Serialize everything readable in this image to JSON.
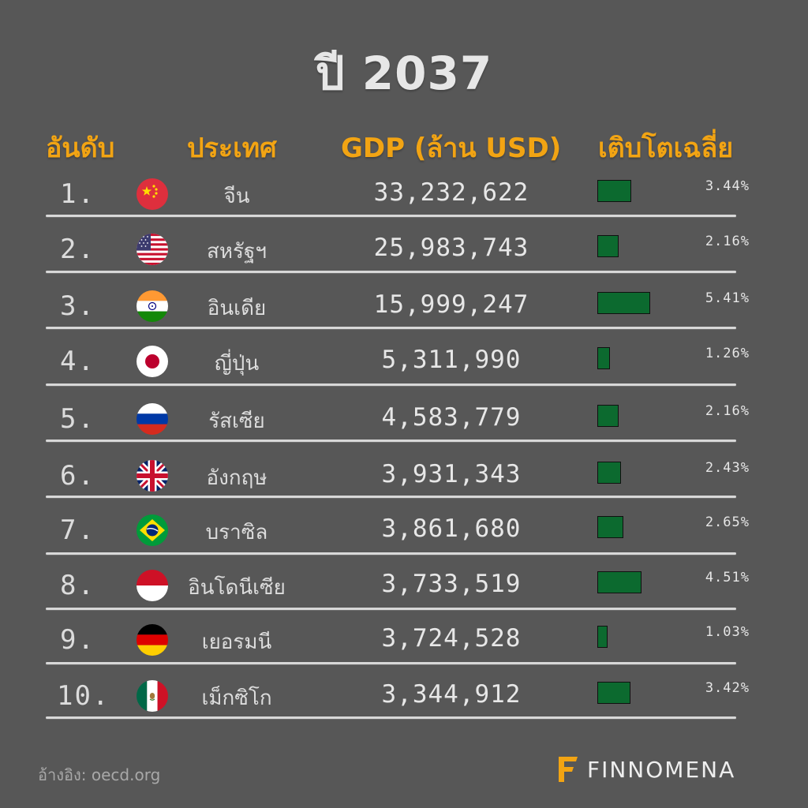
{
  "header": {
    "title": "ปี 2037",
    "col_rank": "อันดับ",
    "col_country": "ประเทศ",
    "col_gdp": "GDP (ล้าน USD)",
    "col_growth": "เติบโตเฉลี่ย"
  },
  "rows": [
    {
      "rank": "1.",
      "country": "จีน",
      "gdp": "33,232,622",
      "growth": "3.44%",
      "flag_icon": "china-flag-icon"
    },
    {
      "rank": "2.",
      "country": "สหรัฐฯ",
      "gdp": "25,983,743",
      "growth": "2.16%",
      "flag_icon": "usa-flag-icon"
    },
    {
      "rank": "3.",
      "country": "อินเดีย",
      "gdp": "15,999,247",
      "growth": "5.41%",
      "flag_icon": "india-flag-icon"
    },
    {
      "rank": "4.",
      "country": "ญี่ปุ่น",
      "gdp": "5,311,990",
      "growth": "1.26%",
      "flag_icon": "japan-flag-icon"
    },
    {
      "rank": "5.",
      "country": "รัสเซีย",
      "gdp": "4,583,779",
      "growth": "2.16%",
      "flag_icon": "russia-flag-icon"
    },
    {
      "rank": "6.",
      "country": "อังกฤษ",
      "gdp": "3,931,343",
      "growth": "2.43%",
      "flag_icon": "uk-flag-icon"
    },
    {
      "rank": "7.",
      "country": "บราซิล",
      "gdp": "3,861,680",
      "growth": "2.65%",
      "flag_icon": "brazil-flag-icon"
    },
    {
      "rank": "8.",
      "country": "อินโดนีเซีย",
      "gdp": "3,733,519",
      "growth": "4.51%",
      "flag_icon": "indonesia-flag-icon"
    },
    {
      "rank": "9.",
      "country": "เยอรมนี",
      "gdp": "3,724,528",
      "growth": "1.03%",
      "flag_icon": "germany-flag-icon"
    },
    {
      "rank": "10.",
      "country": "เม็กซิโก",
      "gdp": "3,344,912",
      "growth": "3.42%",
      "flag_icon": "mexico-flag-icon"
    }
  ],
  "chart_data": {
    "type": "bar",
    "categories": [
      "จีน",
      "สหรัฐฯ",
      "อินเดีย",
      "ญี่ปุ่น",
      "รัสเซีย",
      "อังกฤษ",
      "บราซิล",
      "อินโดนีเซีย",
      "เยอรมนี",
      "เม็กซิโก"
    ],
    "values": [
      3.44,
      2.16,
      5.41,
      1.26,
      2.16,
      2.43,
      2.65,
      4.51,
      1.03,
      3.42
    ],
    "gdp": [
      33232622,
      25983743,
      15999247,
      5311990,
      4583779,
      3931343,
      3861680,
      3733519,
      3724528,
      3344912
    ],
    "title": "ปี 2037",
    "xlabel": "",
    "ylabel": "เติบโตเฉลี่ย"
  },
  "colors": {
    "background": "#575757",
    "header": "#f2a413",
    "bar": "#0c6a2f",
    "text": "#e6e6e6"
  },
  "footer": {
    "reference": "อ้างอิง: oecd.org",
    "brand": "FINNOMENA"
  }
}
